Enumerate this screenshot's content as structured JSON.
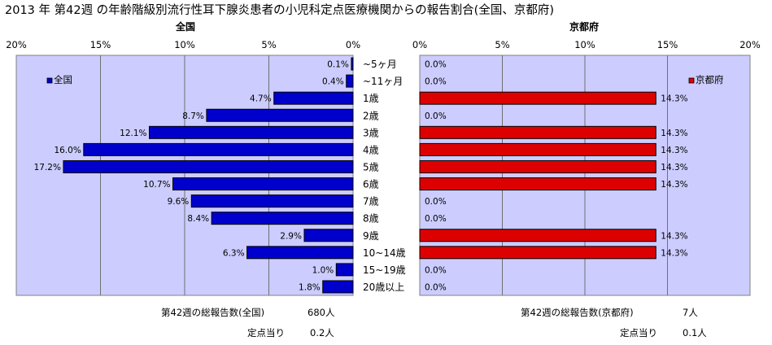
{
  "title": "2013 年 第42週 の年齢階級別流行性耳下腺炎患者の小児科定点医療機関からの報告割合(全国、京都府)",
  "colors": {
    "plot_bg": "#ccccff",
    "national_bar": "#0000cc",
    "kyoto_bar": "#dd0000"
  },
  "chart_data": [
    {
      "type": "bar",
      "orientation": "horizontal",
      "direction": "right-to-left",
      "title": "全国",
      "categories": [
        "~5ヶ月",
        "~11ヶ月",
        "1歳",
        "2歳",
        "3歳",
        "4歳",
        "5歳",
        "6歳",
        "7歳",
        "8歳",
        "9歳",
        "10~14歳",
        "15~19歳",
        "20歳以上"
      ],
      "series": [
        {
          "name": "全国",
          "values": [
            0.1,
            0.4,
            4.7,
            8.7,
            12.1,
            16.0,
            17.2,
            10.7,
            9.6,
            8.4,
            2.9,
            6.3,
            1.0,
            1.8
          ]
        }
      ],
      "data_labels": [
        "0.1%",
        "0.4%",
        "4.7%",
        "8.7%",
        "12.1%",
        "16.0%",
        "17.2%",
        "10.7%",
        "9.6%",
        "8.4%",
        "2.9%",
        "6.3%",
        "1.0%",
        "1.8%"
      ],
      "xlim": [
        0,
        20
      ],
      "ticks": [
        "0%",
        "5%",
        "10%",
        "15%",
        "20%"
      ],
      "legend": "top-left",
      "grid": true
    },
    {
      "type": "bar",
      "orientation": "horizontal",
      "direction": "left-to-right",
      "title": "京都府",
      "categories": [
        "~5ヶ月",
        "~11ヶ月",
        "1歳",
        "2歳",
        "3歳",
        "4歳",
        "5歳",
        "6歳",
        "7歳",
        "8歳",
        "9歳",
        "10~14歳",
        "15~19歳",
        "20歳以上"
      ],
      "series": [
        {
          "name": "京都府",
          "values": [
            0,
            0,
            14.3,
            0,
            14.3,
            14.3,
            14.3,
            14.3,
            0,
            0,
            14.3,
            14.3,
            0,
            0
          ]
        }
      ],
      "data_labels": [
        "0.0%",
        "0.0%",
        "14.3%",
        "0.0%",
        "14.3%",
        "14.3%",
        "14.3%",
        "14.3%",
        "0.0%",
        "0.0%",
        "14.3%",
        "14.3%",
        "0.0%",
        "0.0%"
      ],
      "xlim": [
        0,
        20
      ],
      "ticks": [
        "0%",
        "5%",
        "10%",
        "15%",
        "20%"
      ],
      "legend": "top-right",
      "grid": true
    }
  ],
  "footer": {
    "national": {
      "total_label": "第42週の総報告数(全国)",
      "total_value": "680人",
      "per_label": "定点当り",
      "per_value": "0.2人"
    },
    "kyoto": {
      "total_label": "第42週の総報告数(京都府)",
      "total_value": "7人",
      "per_label": "定点当り",
      "per_value": "0.1人"
    }
  }
}
